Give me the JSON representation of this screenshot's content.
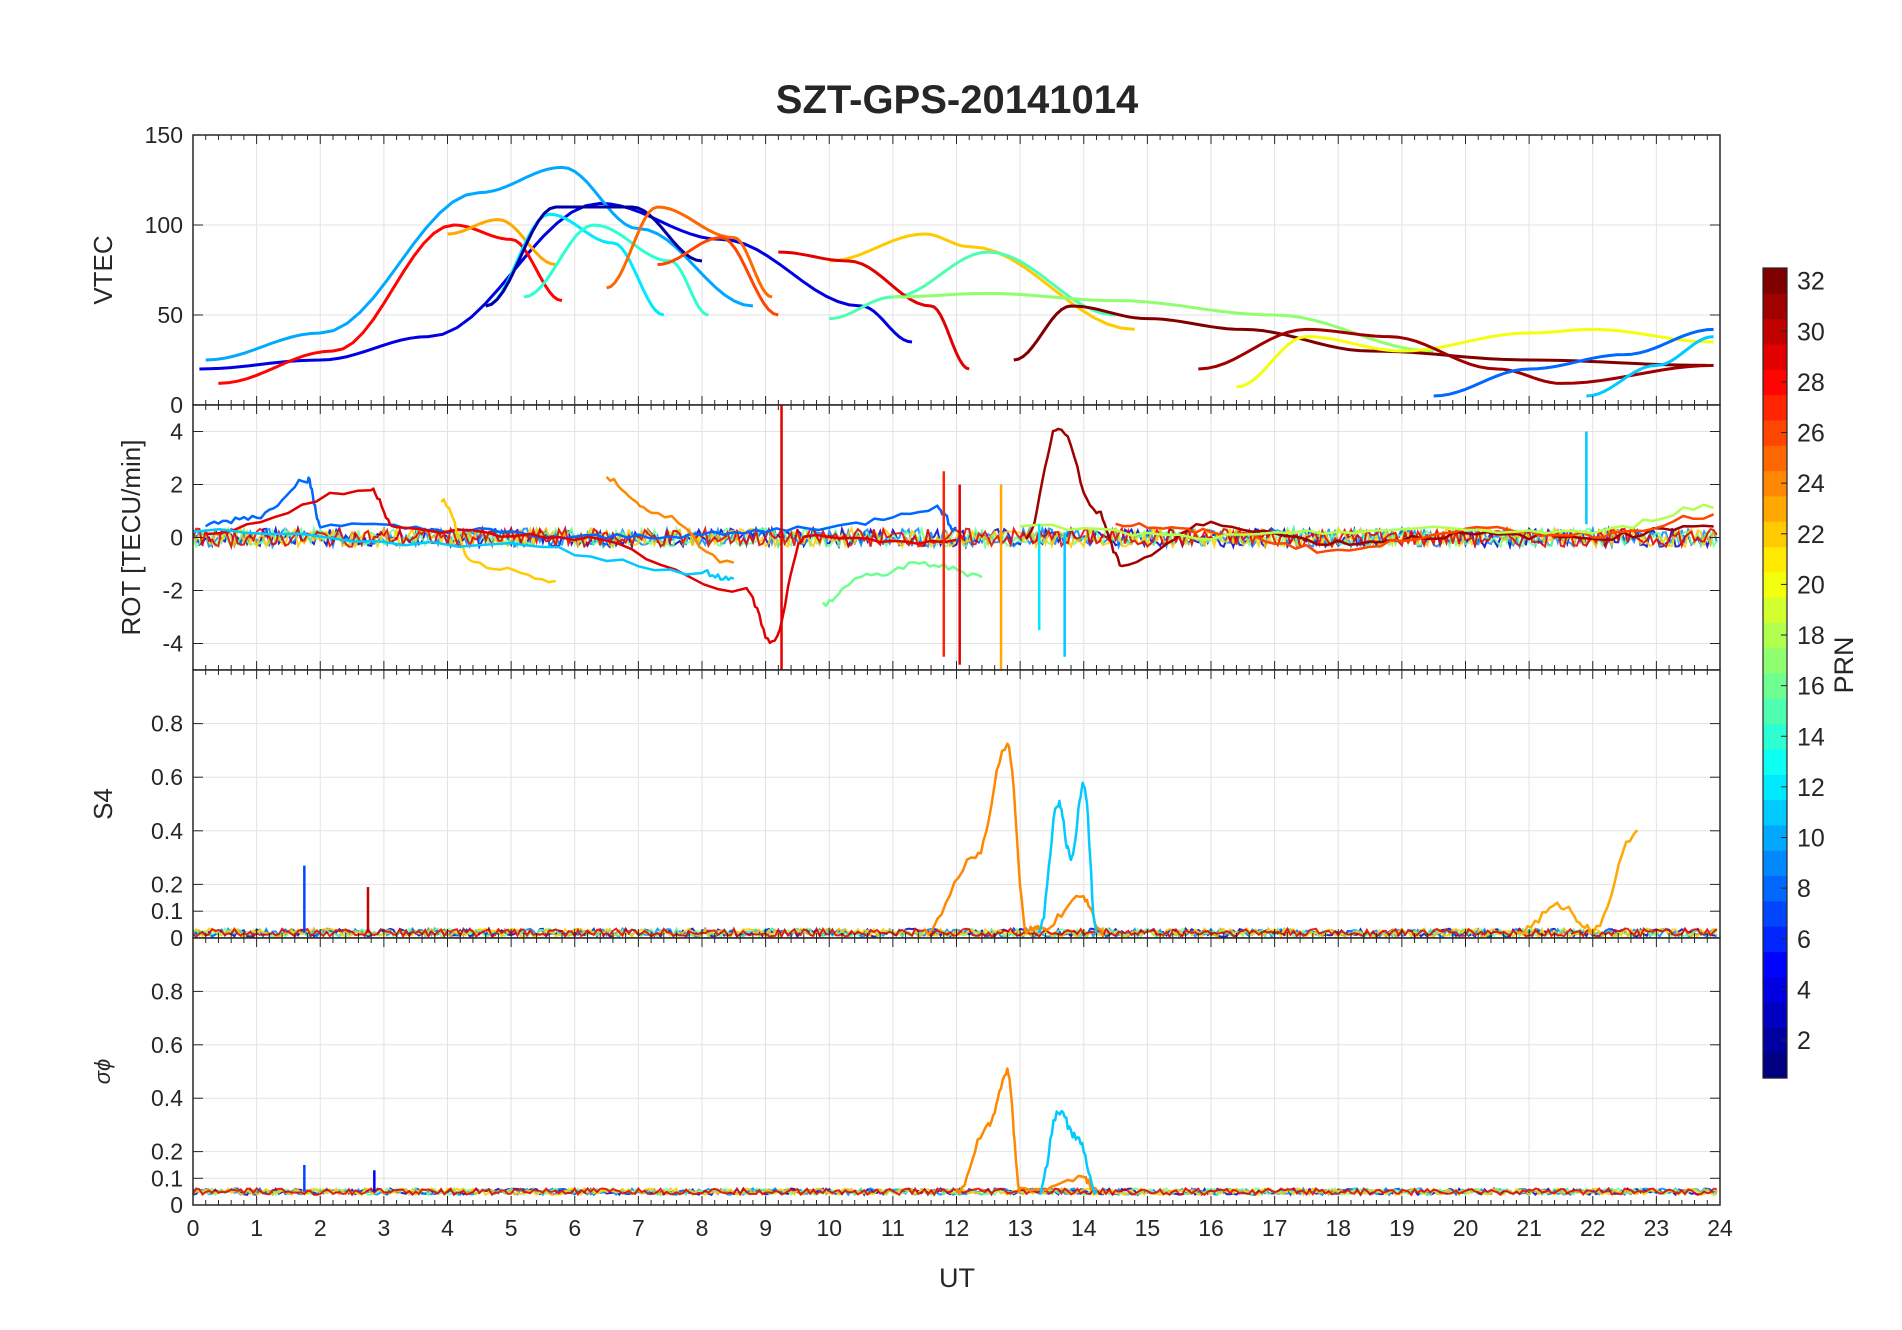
{
  "chart_data": {
    "type": "line",
    "title": "SZT-GPS-20141014",
    "xlabel": "UT",
    "xlim": [
      0,
      24
    ],
    "xticks": [
      0,
      1,
      2,
      3,
      4,
      5,
      6,
      7,
      8,
      9,
      10,
      11,
      12,
      13,
      14,
      15,
      16,
      17,
      18,
      19,
      20,
      21,
      22,
      23,
      24
    ],
    "panels": [
      {
        "name": "vtec",
        "ylabel": "VTEC",
        "ylim": [
          0,
          150
        ],
        "yticks": [
          0,
          50,
          100,
          150
        ],
        "series": [
          {
            "prn": 4,
            "x": [
              0.1,
              2,
              3.7,
              6.4,
              8.3,
              10.5,
              11.3
            ],
            "y": [
              20,
              25,
              38,
              112,
              92,
              55,
              35
            ]
          },
          {
            "prn": 10,
            "x": [
              0.2,
              2,
              4.5,
              5.8,
              7,
              8.8
            ],
            "y": [
              25,
              40,
              118,
              132,
              98,
              55
            ]
          },
          {
            "prn": 28,
            "x": [
              0.4,
              2.2,
              4.1,
              5,
              5.8
            ],
            "y": [
              12,
              30,
              100,
              92,
              58
            ]
          },
          {
            "prn": 23,
            "x": [
              4,
              4.8,
              5.7
            ],
            "y": [
              95,
              103,
              78
            ]
          },
          {
            "prn": 12,
            "x": [
              4.6,
              5.6,
              6.6,
              7.4
            ],
            "y": [
              55,
              106,
              90,
              50
            ]
          },
          {
            "prn": 2,
            "x": [
              4.6,
              5.7,
              6.9,
              8
            ],
            "y": [
              55,
              110,
              110,
              80
            ]
          },
          {
            "prn": 14,
            "x": [
              5.2,
              6.3,
              7.5,
              8.1
            ],
            "y": [
              60,
              100,
              80,
              50
            ]
          },
          {
            "prn": 25,
            "x": [
              6.5,
              7.3,
              8.5,
              9.1
            ],
            "y": [
              65,
              110,
              93,
              60
            ]
          },
          {
            "prn": 26,
            "x": [
              7.3,
              8.3,
              9.2
            ],
            "y": [
              78,
              93,
              50
            ]
          },
          {
            "prn": 22,
            "x": [
              10,
              11.5,
              12.2,
              14.8
            ],
            "y": [
              80,
              95,
              88,
              42
            ]
          },
          {
            "prn": 15,
            "x": [
              10,
              11,
              12.5,
              14.5
            ],
            "y": [
              48,
              60,
              85,
              50
            ]
          },
          {
            "prn": 29,
            "x": [
              9.2,
              10.3,
              11.6,
              12.2
            ],
            "y": [
              85,
              80,
              55,
              20
            ]
          },
          {
            "prn": 17,
            "x": [
              11,
              12.5,
              14.5,
              17,
              19.5
            ],
            "y": [
              60,
              62,
              58,
              50,
              30
            ]
          },
          {
            "prn": 32,
            "x": [
              12.9,
              13.8,
              15,
              16.5,
              18.5,
              21,
              23.8
            ],
            "y": [
              25,
              55,
              48,
              42,
              30,
              25,
              22
            ]
          },
          {
            "prn": 20,
            "x": [
              16.4,
              17.5,
              19,
              21,
              22,
              23.9
            ],
            "y": [
              10,
              38,
              30,
              40,
              42,
              35
            ]
          },
          {
            "prn": 31,
            "x": [
              15.8,
              17.5,
              18.8,
              20.5,
              21.5,
              23.9
            ],
            "y": [
              20,
              42,
              38,
              20,
              12,
              22
            ]
          },
          {
            "prn": 8,
            "x": [
              19.5,
              21,
              22.5,
              23.9
            ],
            "y": [
              5,
              20,
              28,
              42
            ]
          },
          {
            "prn": 11,
            "x": [
              21.9,
              23,
              23.9
            ],
            "y": [
              5,
              22,
              38
            ]
          }
        ]
      },
      {
        "name": "rot",
        "ylabel": "ROT [TECU/min]",
        "ylim": [
          -5,
          5
        ],
        "yticks": [
          -4,
          -2,
          0,
          2,
          4
        ],
        "yticklabels": [
          "-4",
          "-2",
          "0",
          "2",
          "4"
        ],
        "series": [
          {
            "prn": 8,
            "x": [
              0.2,
              1,
              1.8,
              2,
              4,
              6,
              8,
              10,
              11.7,
              12
            ],
            "y": [
              0.5,
              0.8,
              2.2,
              0.5,
              0.3,
              0,
              0.1,
              0.4,
              1.1,
              0.3
            ]
          },
          {
            "prn": 29,
            "x": [
              0.2,
              2.8,
              3.2,
              6,
              8.7,
              9.1,
              9.6,
              12
            ],
            "y": [
              0.2,
              1.8,
              0.3,
              0,
              -2,
              -4,
              0,
              -0.2
            ]
          },
          {
            "prn": 24,
            "x": [
              6.5,
              7.2,
              8.5
            ],
            "y": [
              2.2,
              1,
              -1
            ]
          },
          {
            "prn": 22,
            "x": [
              3.9,
              4.4,
              5.7
            ],
            "y": [
              1.4,
              -1,
              -1.7
            ]
          },
          {
            "prn": 11,
            "x": [
              0,
              5,
              8,
              8.5
            ],
            "y": [
              0.2,
              -0.3,
              -1.3,
              -1.6
            ]
          },
          {
            "prn": 16,
            "x": [
              9.9,
              10.5,
              11.5,
              12.4
            ],
            "y": [
              -2.5,
              -1.5,
              -1,
              -1.4
            ]
          },
          {
            "prn": 31,
            "x": [
              13.1,
              13.6,
              14.2,
              14.6,
              16,
              18,
              20,
              22,
              23.9
            ],
            "y": [
              0,
              4.2,
              1,
              -1,
              0.5,
              -0.2,
              0.1,
              0,
              0.5
            ]
          },
          {
            "prn": 26,
            "x": [
              14.5,
              16,
              18,
              20,
              22,
              23.9
            ],
            "y": [
              0.5,
              0.2,
              -0.5,
              0.3,
              0.1,
              0.8
            ]
          },
          {
            "prn": 18,
            "x": [
              13,
              16,
              19,
              22,
              23.9
            ],
            "y": [
              0.4,
              0,
              0.3,
              0.2,
              1.2
            ]
          }
        ],
        "spikes": [
          {
            "prn": 29,
            "x": 9.25,
            "ymin": -5,
            "ymax": 5
          },
          {
            "prn": 27,
            "x": 11.8,
            "ymin": -4.5,
            "ymax": 2.5
          },
          {
            "prn": 29,
            "x": 12.05,
            "ymin": -4.8,
            "ymax": 2
          },
          {
            "prn": 23,
            "x": 12.7,
            "ymin": -5,
            "ymax": 2
          },
          {
            "prn": 12,
            "x": 13.3,
            "ymin": -3.5,
            "ymax": 0.5
          },
          {
            "prn": 11,
            "x": 13.7,
            "ymin": -4.5,
            "ymax": 0.2
          },
          {
            "prn": 11,
            "x": 21.9,
            "ymin": 0.5,
            "ymax": 4
          }
        ]
      },
      {
        "name": "s4",
        "ylabel": "S4",
        "ylim": [
          0,
          1
        ],
        "yticks": [
          0,
          0.1,
          0.2,
          0.4,
          0.6,
          0.8
        ],
        "yticklabels": [
          "0",
          "0.1",
          "0.2",
          "0.4",
          "0.6",
          "0.8"
        ],
        "series": [
          {
            "prn": 24,
            "x": [
              11.5,
              12.3,
              12.8,
              13.1,
              13.3,
              14,
              14.3
            ],
            "y": [
              0.02,
              0.3,
              0.72,
              0.03,
              0.03,
              0.15,
              0.02
            ]
          },
          {
            "prn": 11,
            "x": [
              13.3,
              13.6,
              13.8,
              14,
              14.2
            ],
            "y": [
              0.02,
              0.5,
              0.3,
              0.58,
              0.02
            ]
          },
          {
            "prn": 23,
            "x": [
              20.8,
              21.5,
              22,
              22.7
            ],
            "y": [
              0.02,
              0.12,
              0.03,
              0.4
            ]
          }
        ],
        "spikes": [
          {
            "prn": 7,
            "x": 1.75,
            "ymin": 0.02,
            "ymax": 0.27
          },
          {
            "prn": 30,
            "x": 2.75,
            "ymin": 0.02,
            "ymax": 0.19
          }
        ]
      },
      {
        "name": "sigma_phi",
        "ylabel": "σϕ",
        "ylim": [
          0,
          1
        ],
        "yticks": [
          0,
          0.1,
          0.2,
          0.4,
          0.6,
          0.8
        ],
        "yticklabels": [
          "0",
          "0.1",
          "0.2",
          "0.4",
          "0.6",
          "0.8"
        ],
        "series": [
          {
            "prn": 24,
            "x": [
              12,
              12.5,
              12.8,
              13,
              14,
              14.2
            ],
            "y": [
              0.05,
              0.3,
              0.5,
              0.05,
              0.1,
              0.05
            ]
          },
          {
            "prn": 11,
            "x": [
              13.3,
              13.6,
              13.9,
              14.2
            ],
            "y": [
              0.05,
              0.35,
              0.25,
              0.05
            ]
          }
        ],
        "spikes": [
          {
            "prn": 7,
            "x": 1.75,
            "ymin": 0.05,
            "ymax": 0.15
          },
          {
            "prn": 5,
            "x": 2.85,
            "ymin": 0.05,
            "ymax": 0.13
          }
        ]
      }
    ],
    "colorbar": {
      "label": "PRN",
      "range": [
        1,
        32
      ],
      "ticks": [
        2,
        4,
        6,
        8,
        10,
        12,
        14,
        16,
        18,
        20,
        22,
        24,
        26,
        28,
        30,
        32
      ],
      "colormap": "jet"
    }
  }
}
